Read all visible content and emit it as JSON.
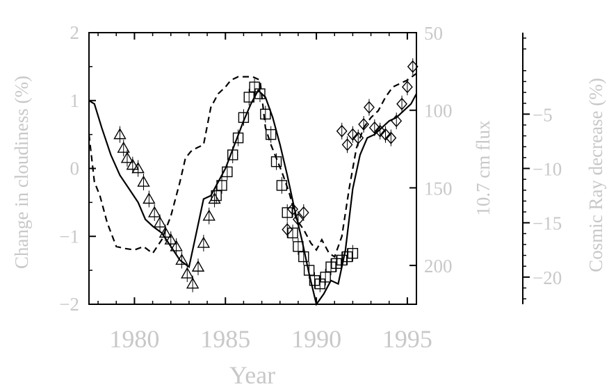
{
  "chart_data": {
    "type": "line",
    "xlabel": "Year",
    "y_left_label": "Change in cloudiness (%)",
    "y_right_label": "10.7 cm flux",
    "y_far_right_label": "Cosmic Ray decrease (%)",
    "xlim": [
      1977.5,
      1995.5
    ],
    "ylim_left": [
      -2,
      2
    ],
    "ylim_flux_inverted": [
      225,
      50
    ],
    "ylim_cosmic": [
      -22.5,
      2.5
    ],
    "x_ticks": [
      1980,
      1985,
      1990,
      1995
    ],
    "y_left_ticks": [
      2,
      1,
      0,
      -1,
      -2
    ],
    "y_flux_ticks": [
      50,
      100,
      150,
      200
    ],
    "y_cosmic_ticks": [
      -5,
      -10,
      -15,
      -20
    ],
    "x_tick_labels": [
      "1980",
      "1985",
      "1990",
      "1995"
    ],
    "y_left_tick_labels": [
      "2",
      "1",
      "0",
      "−1",
      "−2"
    ],
    "y_flux_tick_labels": [
      "50",
      "100",
      "150",
      "200"
    ],
    "y_cosmic_tick_labels": [
      "−5",
      "−10",
      "−15",
      "−20"
    ],
    "series": [
      {
        "style": "solid",
        "x": [
          1977.5,
          1977.8,
          1978.2,
          1978.7,
          1979.2,
          1979.7,
          1980.2,
          1980.6,
          1981.0,
          1981.5,
          1982.0,
          1982.5,
          1983.0,
          1983.4,
          1983.8,
          1984.2,
          1984.6,
          1985.0,
          1985.5,
          1986.0,
          1986.4,
          1986.8,
          1987.2,
          1987.6,
          1988.0,
          1988.4,
          1988.8,
          1989.2,
          1989.6,
          1990.0,
          1990.4,
          1990.8,
          1991.2,
          1991.6,
          1992.0,
          1992.4,
          1992.8,
          1993.2,
          1993.6,
          1994.0,
          1994.4,
          1994.8,
          1995.2,
          1995.5
        ],
        "y": [
          1.0,
          0.95,
          0.6,
          0.2,
          -0.1,
          -0.3,
          -0.5,
          -0.75,
          -0.85,
          -0.95,
          -1.15,
          -1.35,
          -1.45,
          -0.95,
          -0.45,
          -0.4,
          -0.2,
          0.0,
          0.35,
          0.7,
          0.95,
          1.15,
          1.05,
          0.75,
          0.35,
          -0.1,
          -0.6,
          -1.05,
          -1.55,
          -2.0,
          -1.85,
          -1.65,
          -1.7,
          -1.2,
          -0.3,
          0.2,
          0.45,
          0.5,
          0.6,
          0.7,
          0.75,
          0.85,
          0.95,
          1.1
        ]
      },
      {
        "style": "dashed",
        "x": [
          1977.5,
          1977.8,
          1978.1,
          1978.5,
          1979.0,
          1979.5,
          1980.0,
          1980.5,
          1981.0,
          1981.5,
          1982.0,
          1982.5,
          1982.8,
          1983.1,
          1983.4,
          1983.8,
          1984.2,
          1984.6,
          1985.0,
          1985.3,
          1985.7,
          1986.1,
          1986.5,
          1986.9,
          1987.2,
          1987.5,
          1987.8,
          1988.1,
          1988.5,
          1988.9,
          1989.3,
          1989.7,
          1990.0,
          1990.3,
          1990.7,
          1991.0,
          1991.4,
          1991.8,
          1992.2,
          1992.6,
          1993.0,
          1993.4,
          1993.8,
          1994.2,
          1994.6,
          1995.0,
          1995.5
        ],
        "y": [
          0.5,
          -0.2,
          -0.4,
          -0.8,
          -1.15,
          -1.18,
          -1.2,
          -1.15,
          -1.25,
          -1.05,
          -0.7,
          -0.2,
          0.15,
          0.25,
          0.3,
          0.35,
          0.9,
          1.1,
          1.2,
          1.3,
          1.35,
          1.35,
          1.35,
          1.3,
          0.6,
          0.35,
          0.15,
          -0.05,
          -0.35,
          -0.75,
          -0.9,
          -1.1,
          -1.2,
          -1.05,
          -1.25,
          -1.3,
          -1.0,
          -0.3,
          0.3,
          0.6,
          0.75,
          0.85,
          1.05,
          1.2,
          1.25,
          1.3,
          1.4
        ]
      },
      {
        "marker": "triangle",
        "x": [
          1979.2,
          1979.4,
          1979.6,
          1979.9,
          1980.2,
          1980.5,
          1980.8,
          1981.1,
          1981.4,
          1981.7,
          1982.0,
          1982.3,
          1982.6,
          1982.9,
          1983.2,
          1983.5,
          1983.8,
          1984.1,
          1984.4
        ],
        "y": [
          0.5,
          0.3,
          0.15,
          0.05,
          0.0,
          -0.2,
          -0.45,
          -0.65,
          -0.8,
          -0.95,
          -1.05,
          -1.15,
          -1.35,
          -1.55,
          -1.7,
          -1.45,
          -1.1,
          -0.7,
          -0.45
        ]
      },
      {
        "marker": "square",
        "x": [
          1984.5,
          1984.8,
          1985.1,
          1985.4,
          1985.7,
          1986.0,
          1986.3,
          1986.6,
          1986.9,
          1987.2,
          1987.5,
          1987.8,
          1988.1,
          1988.4,
          1988.7,
          1989.0,
          1989.3,
          1989.6,
          1989.9,
          1990.2,
          1990.5,
          1990.8,
          1991.1,
          1991.4,
          1991.7,
          1992.0
        ],
        "y": [
          -0.4,
          -0.25,
          -0.05,
          0.2,
          0.45,
          0.75,
          1.05,
          1.2,
          1.1,
          0.8,
          0.5,
          0.1,
          -0.25,
          -0.65,
          -0.95,
          -1.15,
          -1.3,
          -1.5,
          -1.65,
          -1.7,
          -1.6,
          -1.45,
          -1.4,
          -1.35,
          -1.3,
          -1.25
        ]
      },
      {
        "marker": "diamond",
        "x": [
          1988.4,
          1988.7,
          1989.0,
          1989.3,
          1991.4,
          1991.7,
          1992.0,
          1992.3,
          1992.6,
          1992.9,
          1993.2,
          1993.5,
          1993.8,
          1994.1,
          1994.4,
          1994.7,
          1995.0,
          1995.3
        ],
        "y": [
          -0.9,
          -0.6,
          -0.75,
          -0.65,
          0.55,
          0.35,
          0.5,
          0.45,
          0.65,
          0.9,
          0.6,
          0.55,
          0.5,
          0.45,
          0.7,
          0.95,
          1.2,
          1.5
        ]
      }
    ]
  }
}
